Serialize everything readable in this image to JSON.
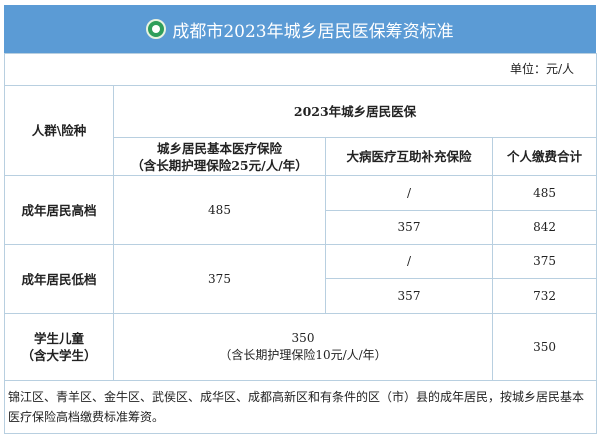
{
  "title": "成都市2023年城乡居民医保筹资标准",
  "logo_icon": "medical-insurance-logo",
  "unit": "单位：元/人",
  "header": {
    "group_col": "人群\\险种",
    "top": "2023年城乡居民医保",
    "col1_line1": "城乡居民基本医疗保险",
    "col1_line2": "（含长期护理保险25元/人/年）",
    "col2": "大病医疗互助补充保险",
    "col3": "个人缴费合计"
  },
  "rows": [
    {
      "group": "成年居民高档",
      "basic": "485",
      "sub": [
        {
          "critical": "/",
          "total": "485"
        },
        {
          "critical": "357",
          "total": "842"
        }
      ]
    },
    {
      "group": "成年居民低档",
      "basic": "375",
      "sub": [
        {
          "critical": "/",
          "total": "375"
        },
        {
          "critical": "357",
          "total": "732"
        }
      ]
    }
  ],
  "student": {
    "group_line1": "学生儿童",
    "group_line2": "（含大学生）",
    "value": "350",
    "value_note": "（含长期护理保险10元/人/年）",
    "total": "350"
  },
  "note": "锦江区、青羊区、金牛区、武侯区、成华区、成都高新区和有条件的区（市）县的成年居民，按城乡居民基本医疗保险高档缴费标准筹资。",
  "colors": {
    "title_bg": "#5b9bd5",
    "border": "#b8cfe0"
  }
}
